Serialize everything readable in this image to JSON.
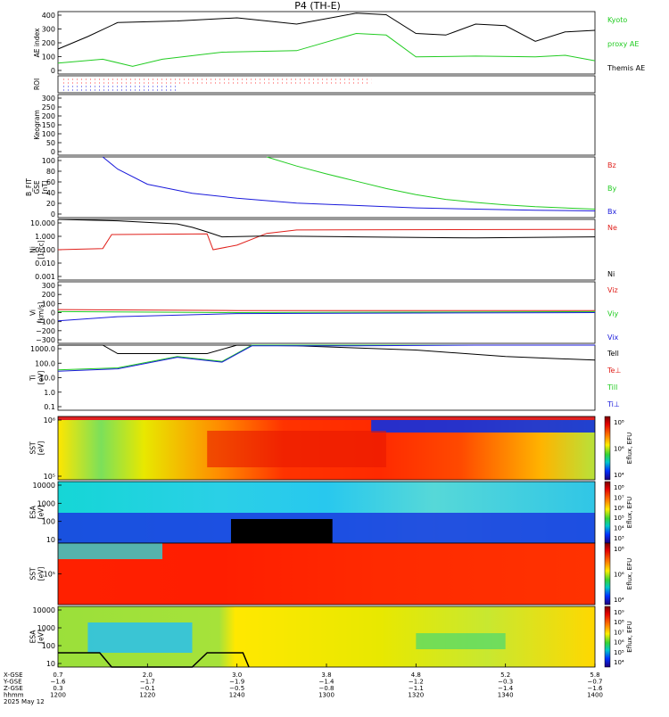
{
  "title": "P4 (TH-E)",
  "colors": {
    "black": "#000000",
    "red": "#e0201b",
    "green": "#22cc22",
    "blue": "#1a1adb",
    "kyoto": "#22cc22"
  },
  "panels": [
    {
      "id": "ae",
      "ylabel": [
        "AE index"
      ],
      "ticks": [
        "400",
        "300",
        "200",
        "100",
        "0"
      ],
      "legend": [
        {
          "text": "Kyoto",
          "color": "green"
        },
        {
          "text": "proxy AE",
          "color": "green"
        },
        {
          "text": "Themis AE",
          "color": "black"
        }
      ]
    },
    {
      "id": "roi",
      "ylabel": [
        "ROI"
      ],
      "ticks": [],
      "legend": []
    },
    {
      "id": "keogram",
      "ylabel": [
        "Keogram"
      ],
      "ticks": [
        "300",
        "250",
        "200",
        "150",
        "100",
        "50",
        "0"
      ],
      "legend": []
    },
    {
      "id": "bfit",
      "ylabel": [
        "B_FIT",
        "GSE",
        "[nT]"
      ],
      "ticks": [
        "100",
        "80",
        "60",
        "40",
        "20",
        "0"
      ],
      "legend": [
        {
          "text": "Bz",
          "color": "red"
        },
        {
          "text": "By",
          "color": "green"
        },
        {
          "text": "Bx",
          "color": "blue"
        }
      ]
    },
    {
      "id": "ni",
      "ylabel": [
        "Ni",
        "[1/cc]"
      ],
      "ticks": [
        "10.000",
        "1.000",
        "0.100",
        "0.010",
        "0.001"
      ],
      "legend": [
        {
          "text": "Ne",
          "color": "red"
        },
        {
          "text": "Ni",
          "color": "black"
        }
      ]
    },
    {
      "id": "vi",
      "ylabel": [
        "Vi",
        "[km/s]"
      ],
      "ticks": [
        "300",
        "200",
        "100",
        "0",
        "−100",
        "−200",
        "−300"
      ],
      "legend": [
        {
          "text": "Viz",
          "color": "red"
        },
        {
          "text": "Viy",
          "color": "green"
        },
        {
          "text": "Vix",
          "color": "blue"
        }
      ]
    },
    {
      "id": "ti",
      "ylabel": [
        "Ti",
        "[eV]"
      ],
      "ticks": [
        "1000.0",
        "100.0",
        "10.0",
        "1.0",
        "0.1"
      ],
      "legend": [
        {
          "text": "Tell",
          "color": "black"
        },
        {
          "text": "Te⊥",
          "color": "red"
        },
        {
          "text": "Till",
          "color": "green"
        },
        {
          "text": "Ti⊥",
          "color": "blue"
        }
      ]
    },
    {
      "id": "sst_i",
      "ylabel": [
        "SST",
        "[eV]"
      ],
      "ticks": [
        "10⁶",
        "10⁵"
      ],
      "legend": []
    },
    {
      "id": "esa_i",
      "ylabel": [
        "ESA",
        "[eV]"
      ],
      "ticks": [
        "10000",
        "1000",
        "100",
        "10"
      ],
      "legend": []
    },
    {
      "id": "sst_e",
      "ylabel": [
        "SST",
        "[eV]"
      ],
      "ticks": [
        "10⁵"
      ],
      "legend": []
    },
    {
      "id": "esa_e",
      "ylabel": [
        "ESA",
        "[eV]"
      ],
      "ticks": [
        "10000",
        "1000",
        "100",
        "10"
      ],
      "legend": []
    }
  ],
  "colorbars": [
    {
      "label": "Eflux, EFU",
      "ticks": [
        "10⁸",
        "10⁶",
        "10⁴"
      ]
    },
    {
      "label": "Eflux, EFU",
      "ticks": [
        "10⁸",
        "10⁷",
        "10⁶",
        "10⁵",
        "10⁴",
        "10³"
      ]
    },
    {
      "label": "Eflux, EFU",
      "ticks": [
        "10⁸",
        "10⁶",
        "10⁴"
      ]
    },
    {
      "label": "Eflux, EFU",
      "ticks": [
        "10⁹",
        "10⁸",
        "10⁷",
        "10⁶",
        "10⁵",
        "10⁴"
      ]
    }
  ],
  "bottom_axis": {
    "row_labels": [
      "X-GSE",
      "Y-GSE",
      "Z-GSE",
      "hhmm",
      "2025 May 12"
    ],
    "columns": [
      [
        "0.7",
        "−1.6",
        "0.3",
        "1200"
      ],
      [
        "2.0",
        "−1.7",
        "−0.1",
        "1220"
      ],
      [
        "3.0",
        "−1.9",
        "−0.5",
        "1240"
      ],
      [
        "3.8",
        "−1.4",
        "−0.8",
        "1300"
      ],
      [
        "4.8",
        "−1.2",
        "−1.1",
        "1320"
      ],
      [
        "5.2",
        "−0.3",
        "−1.4",
        "1340"
      ],
      [
        "5.8",
        "−0.7",
        "−1.6",
        "1400"
      ]
    ]
  },
  "chart_data": {
    "type": "line",
    "title": "P4 (TH-E)",
    "x": {
      "units": "hhmm",
      "ticks": [
        "1200",
        "1220",
        "1240",
        "1300",
        "1320",
        "1340",
        "1400"
      ],
      "range": [
        "1200",
        "1400"
      ]
    },
    "series": [
      {
        "panel": "ae",
        "name": "Themis AE",
        "points": [
          [
            0,
            160
          ],
          [
            10,
            240
          ],
          [
            20,
            330
          ],
          [
            40,
            340
          ],
          [
            60,
            360
          ],
          [
            80,
            320
          ],
          [
            100,
            390
          ],
          [
            110,
            380
          ],
          [
            120,
            260
          ],
          [
            130,
            250
          ],
          [
            140,
            320
          ],
          [
            150,
            310
          ],
          [
            160,
            210
          ],
          [
            170,
            270
          ],
          [
            180,
            280
          ]
        ]
      },
      {
        "panel": "ae",
        "name": "Kyoto proxy AE",
        "points": [
          [
            0,
            70
          ],
          [
            15,
            95
          ],
          [
            25,
            50
          ],
          [
            35,
            95
          ],
          [
            55,
            140
          ],
          [
            80,
            150
          ],
          [
            100,
            260
          ],
          [
            110,
            250
          ],
          [
            120,
            110
          ],
          [
            140,
            115
          ],
          [
            160,
            110
          ],
          [
            170,
            120
          ],
          [
            180,
            85
          ]
        ]
      },
      {
        "panel": "bfit",
        "name": "Bx",
        "points": [
          [
            15,
            100
          ],
          [
            20,
            80
          ],
          [
            30,
            55
          ],
          [
            45,
            40
          ],
          [
            60,
            32
          ],
          [
            80,
            24
          ],
          [
            100,
            20
          ],
          [
            120,
            16
          ],
          [
            140,
            14
          ],
          [
            160,
            12
          ],
          [
            180,
            11
          ]
        ]
      },
      {
        "panel": "bfit",
        "name": "By",
        "points": [
          [
            70,
            100
          ],
          [
            80,
            85
          ],
          [
            90,
            72
          ],
          [
            100,
            60
          ],
          [
            110,
            48
          ],
          [
            120,
            38
          ],
          [
            130,
            30
          ],
          [
            140,
            25
          ],
          [
            150,
            21
          ],
          [
            160,
            18
          ],
          [
            180,
            14
          ]
        ]
      },
      {
        "panel": "ni",
        "name": "Ne",
        "points": [
          [
            0,
            0.1
          ],
          [
            15,
            0.12
          ],
          [
            18,
            1.0
          ],
          [
            50,
            1.1
          ],
          [
            52,
            0.1
          ],
          [
            60,
            0.2
          ],
          [
            70,
            1.2
          ],
          [
            80,
            2.0
          ],
          [
            180,
            2.2
          ]
        ]
      },
      {
        "panel": "ni",
        "name": "Ni",
        "points": [
          [
            0,
            15
          ],
          [
            20,
            8
          ],
          [
            40,
            5
          ],
          [
            45,
            3
          ],
          [
            50,
            1.5
          ],
          [
            55,
            0.7
          ],
          [
            70,
            0.8
          ],
          [
            100,
            0.7
          ],
          [
            140,
            0.6
          ],
          [
            180,
            0.7
          ]
        ]
      },
      {
        "panel": "vi",
        "name": "Viz",
        "points": [
          [
            0,
            30
          ],
          [
            60,
            20
          ],
          [
            180,
            20
          ]
        ]
      },
      {
        "panel": "vi",
        "name": "Viy",
        "points": [
          [
            0,
            10
          ],
          [
            60,
            0
          ],
          [
            180,
            10
          ]
        ]
      },
      {
        "panel": "vi",
        "name": "Vix",
        "points": [
          [
            0,
            -80
          ],
          [
            20,
            -40
          ],
          [
            60,
            -10
          ],
          [
            180,
            0
          ]
        ]
      },
      {
        "panel": "ti",
        "name": "Tell",
        "points": [
          [
            0,
            1800
          ],
          [
            10,
            2000
          ],
          [
            15,
            1200
          ],
          [
            20,
            300
          ],
          [
            50,
            300
          ],
          [
            60,
            1000
          ],
          [
            80,
            900
          ],
          [
            120,
            500
          ],
          [
            150,
            200
          ],
          [
            180,
            120
          ]
        ]
      },
      {
        "panel": "ti",
        "name": "Till",
        "points": [
          [
            0,
            30
          ],
          [
            20,
            40
          ],
          [
            40,
            200
          ],
          [
            55,
            100
          ],
          [
            65,
            1000
          ],
          [
            100,
            1000
          ],
          [
            140,
            2000
          ],
          [
            180,
            2500
          ]
        ]
      },
      {
        "panel": "ti",
        "name": "Ti⊥",
        "points": [
          [
            0,
            25
          ],
          [
            20,
            35
          ],
          [
            40,
            180
          ],
          [
            55,
            90
          ],
          [
            65,
            900
          ],
          [
            100,
            900
          ],
          [
            140,
            1800
          ],
          [
            180,
            2200
          ]
        ]
      }
    ]
  }
}
